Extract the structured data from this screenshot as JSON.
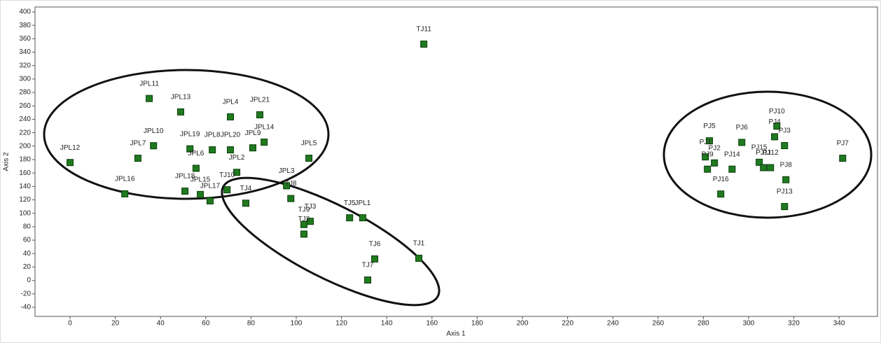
{
  "chart_data": {
    "type": "scatter",
    "x_label": "Axis 1",
    "y_label": "Axis 2",
    "labels": [
      "TJ11",
      "JPL11",
      "JPL13",
      "JPL4",
      "JPL21",
      "JPL10",
      "JPL7",
      "JPL12",
      "JPL19",
      "JPL8",
      "JPL20",
      "JPL9",
      "JPL14",
      "JPL6",
      "JPL2",
      "JPL5",
      "JPL16",
      "JPL18",
      "JPL15",
      "JPL17",
      "TJ10",
      "TJ4",
      "JPL3",
      "TJ8",
      "TJ5",
      "JPL1",
      "TJ3",
      "TJ9",
      "TJ2",
      "TJ6",
      "TJ7",
      "TJ1",
      "PJ5",
      "PJ6",
      "PJ10",
      "PJ4",
      "PJ3",
      "PJ7",
      "PJ1",
      "PJ2",
      "PJ9",
      "PJ14",
      "PJ15",
      "PJ11",
      "PJ12",
      "PJ8",
      "PJ16",
      "PJ13"
    ],
    "x": [
      156.4,
      35,
      48.9,
      70.9,
      83.9,
      36.9,
      30,
      0,
      53,
      62.9,
      70.9,
      80.8,
      85.8,
      55.7,
      73.7,
      105.6,
      24.2,
      50.8,
      57.6,
      61.9,
      69.4,
      77.7,
      95.7,
      97.6,
      123.6,
      129.4,
      106.2,
      103.4,
      103.4,
      134.7,
      131.6,
      154.2,
      282.7,
      297,
      312.5,
      311.5,
      315.9,
      341.6,
      280.9,
      284.9,
      281.8,
      292.7,
      304.7,
      306.6,
      309.7,
      316.5,
      287.7,
      315.9
    ],
    "values": [
      352,
      271,
      251,
      243.6,
      246.7,
      200.6,
      182,
      175.6,
      196,
      194.5,
      194.5,
      197.5,
      206,
      167,
      161,
      182,
      129,
      133,
      128,
      118.5,
      135,
      115,
      141,
      122,
      93.3,
      93.3,
      88,
      83.3,
      69,
      32,
      0.6,
      33,
      208,
      205.6,
      229.8,
      214,
      200.8,
      182,
      184,
      175,
      165.7,
      165.7,
      176,
      168,
      168,
      150,
      128.7,
      110
    ],
    "color": "#1f7a1f",
    "xlim": [
      -15.5,
      357
    ],
    "ylim": [
      -53.6,
      407.3
    ],
    "xticks": [
      0,
      20,
      40,
      60,
      80,
      100,
      120,
      140,
      160,
      180,
      200,
      220,
      240,
      260,
      280,
      300,
      320,
      340
    ],
    "yticks": [
      -40,
      -20,
      0,
      20,
      40,
      60,
      80,
      100,
      120,
      140,
      160,
      180,
      200,
      220,
      240,
      260,
      280,
      300,
      320,
      340,
      360,
      380,
      400
    ]
  }
}
